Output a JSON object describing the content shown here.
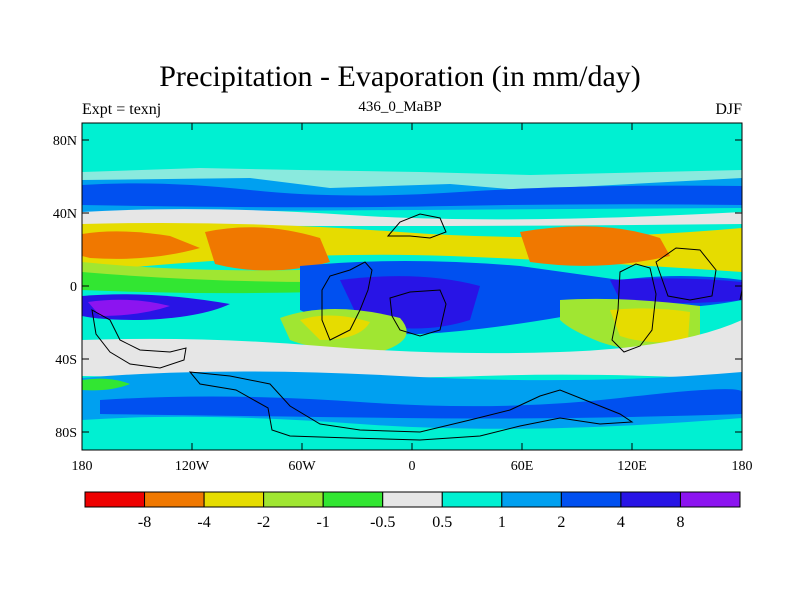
{
  "title": "Precipitation - Evaporation (in mm/day)",
  "experiment_label": "Expt = texnj",
  "age_label": "436_0_MaBP",
  "season_label": "DJF",
  "axes": {
    "lat_ticks": [
      "80N",
      "40N",
      "0",
      "40S",
      "80S"
    ],
    "lon_ticks": [
      "180",
      "120W",
      "60W",
      "0",
      "60E",
      "120E",
      "180"
    ]
  },
  "colorbar": {
    "colors": [
      "#ee0000",
      "#f07800",
      "#e6dc00",
      "#a0e632",
      "#32e632",
      "#e6e6e6",
      "#00f0d2",
      "#00a0f0",
      "#0050f0",
      "#2814e6",
      "#8c14f0"
    ],
    "labels": [
      "-8",
      "-4",
      "-2",
      "-1",
      "-0.5",
      "0.5",
      "1",
      "2",
      "4",
      "8"
    ]
  },
  "colors": {
    "orange": "#f07800",
    "yellow": "#e6dc00",
    "lime": "#a0e632",
    "green": "#32e632",
    "gray": "#e6e6e6",
    "cyan": "#00f0d2",
    "sky": "#00a0f0",
    "blue": "#0050f0",
    "indigo": "#2814e6",
    "violet": "#8c14f0"
  }
}
